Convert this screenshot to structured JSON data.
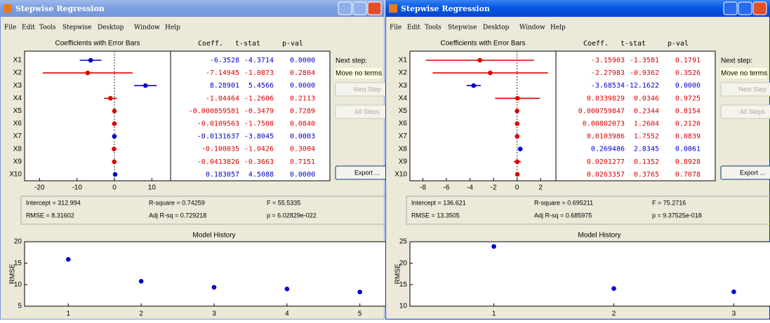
{
  "windows": [
    {
      "title": "Stepwise Regression",
      "active": false,
      "menu": [
        "File",
        "Edit",
        "Tools",
        "Stepwise",
        "Desktop",
        "Window",
        "Help"
      ],
      "coef_plot": {
        "title": "Coefficients with Error Bars",
        "xlim": [
          -24,
          15
        ],
        "xticks": [
          -20,
          -10,
          0,
          10
        ]
      },
      "headers": [
        "Coeff.",
        "t-stat",
        "p-val"
      ],
      "terms": [
        {
          "name": "X1",
          "coeff": "-6.3528",
          "tstat": "-4.3714",
          "pval": "0.0000",
          "error": 2.9,
          "color": "#0000cc"
        },
        {
          "name": "X2",
          "coeff": "-7.14945",
          "tstat": "-1.0873",
          "pval": "0.2804",
          "error": 12,
          "color": "#dd0000"
        },
        {
          "name": "X3",
          "coeff": "8.28901",
          "tstat": "5.4566",
          "pval": "0.0000",
          "error": 3.0,
          "color": "#0000cc"
        },
        {
          "name": "X4",
          "coeff": "-1.04464",
          "tstat": "-1.2606",
          "pval": "0.2113",
          "error": 1.7,
          "color": "#dd0000"
        },
        {
          "name": "X5",
          "coeff": "-0.000859581",
          "tstat": "-0.3479",
          "pval": "0.7289",
          "error": 0.005,
          "color": "#dd0000"
        },
        {
          "name": "X6",
          "coeff": "-0.0109563",
          "tstat": "-1.7508",
          "pval": "0.0840",
          "error": 0.013,
          "color": "#dd0000"
        },
        {
          "name": "X7",
          "coeff": "-0.0131637",
          "tstat": "-3.8045",
          "pval": "0.0003",
          "error": 0.007,
          "color": "#0000cc"
        },
        {
          "name": "X8",
          "coeff": "-0.100035",
          "tstat": "-1.0426",
          "pval": "0.3004",
          "error": 0.19,
          "color": "#dd0000"
        },
        {
          "name": "X9",
          "coeff": "-0.0413826",
          "tstat": "-0.3663",
          "pval": "0.7151",
          "error": 0.23,
          "color": "#dd0000"
        },
        {
          "name": "X10",
          "coeff": "0.183057",
          "tstat": "4.5088",
          "pval": "0.0000",
          "error": 0.08,
          "color": "#0000cc"
        }
      ],
      "next_step": {
        "label": "Next step:",
        "value": "Move no terms"
      },
      "buttons": [
        {
          "label": "Next Step",
          "enabled": false
        },
        {
          "label": "All Steps",
          "enabled": false
        },
        {
          "label": "Export ...",
          "enabled": true
        }
      ],
      "stats": [
        "Intercept = 312.994",
        "R-square = 0.74259",
        "F = 55.5335",
        "RMSE = 8.31602",
        "Adj R-sq = 0.729218",
        "p = 6.02829e-022"
      ],
      "history": {
        "title": "Model History",
        "ylabel": "RMSE",
        "x": [
          1,
          2,
          3,
          4,
          5
        ],
        "values": [
          15.9,
          10.8,
          9.4,
          9.0,
          8.3
        ],
        "xlim": [
          0.4,
          5.6
        ],
        "ylim": [
          5,
          20
        ],
        "xticks": [
          1,
          2,
          3,
          4,
          5
        ],
        "yticks": [
          5,
          10,
          15,
          20
        ],
        "color": "#0000cc"
      }
    },
    {
      "title": "Stepwise Regression",
      "active": true,
      "menu": [
        "File",
        "Edit",
        "Tools",
        "Stepwise",
        "Desktop",
        "Window",
        "Help"
      ],
      "coef_plot": {
        "title": "Coefficients with Error Bars",
        "xlim": [
          -9.1,
          3.3
        ],
        "xticks": [
          -8,
          -6,
          -4,
          -2,
          0,
          2
        ]
      },
      "headers": [
        "Coeff.",
        "t-stat",
        "p-val"
      ],
      "terms": [
        {
          "name": "X1",
          "coeff": "-3.15903",
          "tstat": "-1.3581",
          "pval": "0.1791",
          "error": 4.6,
          "color": "#dd0000"
        },
        {
          "name": "X2",
          "coeff": "-2.27983",
          "tstat": "-0.9362",
          "pval": "0.3526",
          "error": 4.9,
          "color": "#dd0000"
        },
        {
          "name": "X3",
          "coeff": "-3.68534",
          "tstat": "-12.1622",
          "pval": "0.0000",
          "error": 0.6,
          "color": "#0000cc"
        },
        {
          "name": "X4",
          "coeff": "0.0339829",
          "tstat": "0.0346",
          "pval": "0.9725",
          "error": 1.9,
          "color": "#dd0000"
        },
        {
          "name": "X5",
          "coeff": "0.000759847",
          "tstat": "0.2344",
          "pval": "0.8154",
          "error": 0.006,
          "color": "#dd0000"
        },
        {
          "name": "X6",
          "coeff": "0.00802073",
          "tstat": "1.2604",
          "pval": "0.2120",
          "error": 0.013,
          "color": "#dd0000"
        },
        {
          "name": "X7",
          "coeff": "0.0103986",
          "tstat": "1.7552",
          "pval": "0.0839",
          "error": 0.012,
          "color": "#dd0000"
        },
        {
          "name": "X8",
          "coeff": "0.269486",
          "tstat": "2.8345",
          "pval": "0.0061",
          "error": 0.19,
          "color": "#0000cc"
        },
        {
          "name": "X9",
          "coeff": "0.0201277",
          "tstat": "0.1352",
          "pval": "0.8928",
          "error": 0.3,
          "color": "#dd0000"
        },
        {
          "name": "X10",
          "coeff": "0.0263357",
          "tstat": "0.3765",
          "pval": "0.7078",
          "error": 0.14,
          "color": "#dd0000"
        }
      ],
      "next_step": {
        "label": "Next step:",
        "value": "Move no terms"
      },
      "buttons": [
        {
          "label": "Next Step",
          "enabled": false
        },
        {
          "label": "All Steps",
          "enabled": false
        },
        {
          "label": "Export ...",
          "enabled": true
        }
      ],
      "stats": [
        "Intercept = 136.621",
        "R-square = 0.695211",
        "F = 75.2716",
        "RMSE = 13.3505",
        "Adj R-sq = 0.685975",
        "p = 9.37525e-018"
      ],
      "history": {
        "title": "Model History",
        "ylabel": "RMSE",
        "x": [
          1,
          2,
          3
        ],
        "values": [
          23.9,
          14.1,
          13.35
        ],
        "xlim": [
          0.3,
          3.46
        ],
        "ylim": [
          10,
          25
        ],
        "xticks": [
          1,
          2,
          3
        ],
        "yticks": [
          10,
          15,
          20,
          25
        ],
        "color": "#0000cc"
      }
    }
  ]
}
